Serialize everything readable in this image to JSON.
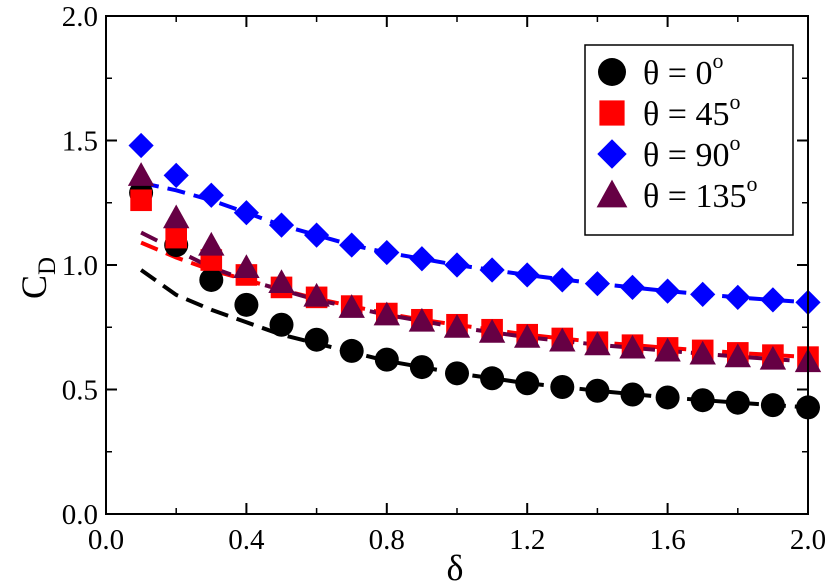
{
  "chart_data": {
    "type": "scatter",
    "title": "",
    "xlabel": "δ",
    "ylabel": "C",
    "ylabel_sub": "D",
    "xlim": [
      0.0,
      2.0
    ],
    "ylim": [
      0.0,
      2.0
    ],
    "x_ticks": [
      0.0,
      0.4,
      0.8,
      1.2,
      1.6,
      2.0
    ],
    "x_tick_labels": [
      "0.0",
      "0.4",
      "0.8",
      "1.2",
      "1.6",
      "2.0"
    ],
    "y_ticks": [
      0.0,
      0.5,
      1.0,
      1.5,
      2.0
    ],
    "y_tick_labels": [
      "0.0",
      "0.5",
      "1.0",
      "1.5",
      "2.0"
    ],
    "legend_position": "top-right",
    "x": [
      0.1,
      0.2,
      0.3,
      0.4,
      0.5,
      0.6,
      0.7,
      0.8,
      0.9,
      1.0,
      1.1,
      1.2,
      1.3,
      1.4,
      1.5,
      1.6,
      1.7,
      1.8,
      1.9,
      2.0
    ],
    "series": [
      {
        "name": "θ = 0",
        "legend_label": "θ = 0",
        "legend_sup": "o",
        "marker": "circle",
        "color": "#000000",
        "values": [
          1.29,
          1.08,
          0.94,
          0.84,
          0.76,
          0.7,
          0.655,
          0.62,
          0.59,
          0.565,
          0.545,
          0.525,
          0.51,
          0.495,
          0.48,
          0.468,
          0.457,
          0.447,
          0.437,
          0.428
        ],
        "fit_x": [
          0.1,
          0.2,
          0.3,
          0.4,
          0.5,
          0.6,
          0.7,
          0.8,
          0.9,
          1.0,
          1.2,
          1.4,
          1.6,
          1.8,
          2.0
        ],
        "fit_y": [
          0.98,
          0.88,
          0.82,
          0.77,
          0.72,
          0.685,
          0.65,
          0.615,
          0.59,
          0.565,
          0.525,
          0.495,
          0.468,
          0.447,
          0.428
        ]
      },
      {
        "name": "θ = 45",
        "legend_label": "θ = 45",
        "legend_sup": "o",
        "marker": "square",
        "color": "#ff0000",
        "values": [
          1.26,
          1.11,
          1.02,
          0.96,
          0.91,
          0.87,
          0.835,
          0.805,
          0.78,
          0.76,
          0.74,
          0.72,
          0.705,
          0.69,
          0.678,
          0.667,
          0.657,
          0.647,
          0.638,
          0.63
        ],
        "fit_x": [
          0.1,
          0.2,
          0.3,
          0.4,
          0.5,
          0.6,
          0.7,
          0.8,
          0.9,
          1.0,
          1.2,
          1.4,
          1.6,
          1.8,
          2.0
        ],
        "fit_y": [
          1.09,
          1.03,
          0.98,
          0.94,
          0.9,
          0.865,
          0.835,
          0.805,
          0.78,
          0.76,
          0.72,
          0.69,
          0.667,
          0.647,
          0.63
        ]
      },
      {
        "name": "θ = 90",
        "legend_label": "θ = 90",
        "legend_sup": "o",
        "marker": "diamond",
        "color": "#0000ff",
        "values": [
          1.48,
          1.36,
          1.28,
          1.21,
          1.16,
          1.12,
          1.08,
          1.05,
          1.025,
          1.0,
          0.98,
          0.96,
          0.94,
          0.925,
          0.91,
          0.895,
          0.882,
          0.87,
          0.86,
          0.85
        ],
        "fit_x": [
          0.1,
          0.2,
          0.3,
          0.4,
          0.5,
          0.6,
          0.7,
          0.8,
          0.9,
          1.0,
          1.2,
          1.4,
          1.6,
          1.8,
          2.0
        ],
        "fit_y": [
          1.33,
          1.3,
          1.26,
          1.21,
          1.16,
          1.12,
          1.08,
          1.05,
          1.025,
          1.0,
          0.96,
          0.925,
          0.895,
          0.87,
          0.85
        ]
      },
      {
        "name": "θ = 135",
        "legend_label": "θ = 135",
        "legend_sup": "o",
        "marker": "triangle",
        "color": "#660044",
        "values": [
          1.36,
          1.19,
          1.08,
          0.99,
          0.93,
          0.875,
          0.83,
          0.8,
          0.775,
          0.75,
          0.73,
          0.71,
          0.695,
          0.68,
          0.667,
          0.655,
          0.643,
          0.632,
          0.622,
          0.612
        ],
        "fit_x": [
          0.1,
          0.2,
          0.3,
          0.4,
          0.5,
          0.6,
          0.7,
          0.8,
          0.9,
          1.0,
          1.2,
          1.4,
          1.6,
          1.8,
          2.0
        ],
        "fit_y": [
          1.13,
          1.06,
          0.99,
          0.94,
          0.9,
          0.86,
          0.83,
          0.8,
          0.775,
          0.75,
          0.71,
          0.68,
          0.655,
          0.632,
          0.612
        ]
      }
    ]
  }
}
